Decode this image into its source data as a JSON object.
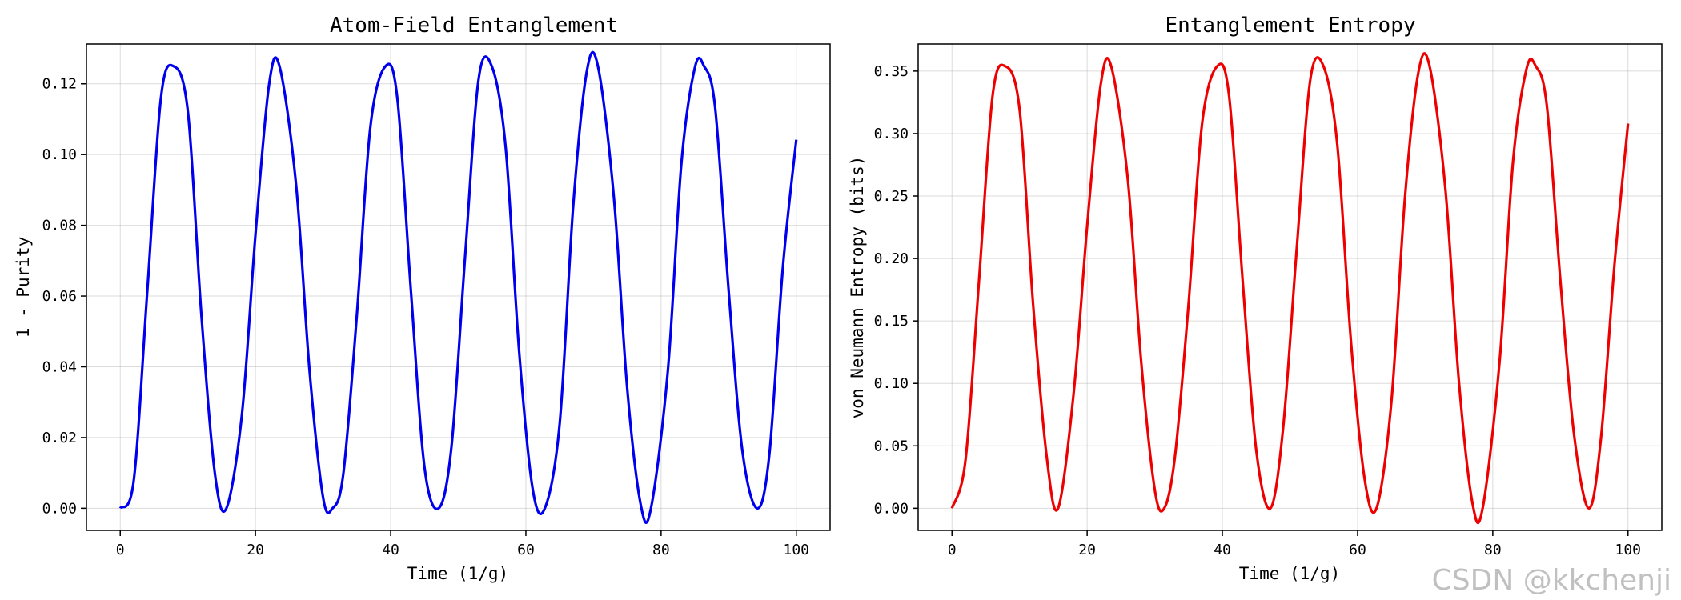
{
  "watermark": "CSDN @kkchenji",
  "chart_data": [
    {
      "type": "line",
      "title": "Atom-Field Entanglement",
      "xlabel": "Time (1/g)",
      "ylabel": "1 - Purity",
      "xlim": [
        -5,
        105
      ],
      "ylim": [
        -0.00625,
        0.13125
      ],
      "xticks": [
        0,
        20,
        40,
        60,
        80,
        100
      ],
      "xtick_labels": [
        "0",
        "20",
        "40",
        "60",
        "80",
        "100"
      ],
      "yticks": [
        0,
        0.02,
        0.04,
        0.06,
        0.08,
        0.1,
        0.12
      ],
      "ytick_labels": [
        "0.00",
        "0.02",
        "0.04",
        "0.06",
        "0.08",
        "0.10",
        "0.12"
      ],
      "grid": true,
      "series": [
        {
          "color": "#0000ee",
          "x": [
            0,
            2,
            4,
            6,
            7.85,
            10,
            12,
            14,
            15.7,
            18,
            20,
            22,
            23.55,
            26,
            28,
            30,
            31.4,
            33,
            35,
            37,
            39.25,
            41,
            43,
            45,
            47.1,
            49,
            51,
            53,
            54.95,
            57,
            59,
            61,
            62.8,
            65,
            67,
            69,
            70.65,
            73,
            75,
            77,
            78.5,
            81,
            83,
            85,
            86.35,
            88,
            90,
            92,
            94.2,
            96,
            98,
            100
          ],
          "y": [
            0.0,
            0.0079,
            0.0614,
            0.1157,
            0.125,
            0.1122,
            0.0547,
            0.0098,
            0.0,
            0.0266,
            0.0774,
            0.1196,
            0.125,
            0.0916,
            0.0389,
            0.0031,
            0.0,
            0.0098,
            0.0547,
            0.1078,
            0.125,
            0.1157,
            0.0614,
            0.0117,
            0.0,
            0.0175,
            0.0709,
            0.1212,
            0.125,
            0.1022,
            0.0444,
            0.0055,
            0.0,
            0.024,
            0.0855,
            0.1234,
            0.125,
            0.0882,
            0.0336,
            0.0009,
            0.0,
            0.0389,
            0.0974,
            0.1246,
            0.125,
            0.1132,
            0.0614,
            0.0166,
            0.0,
            0.0149,
            0.0678,
            0.1042
          ]
        }
      ]
    },
    {
      "type": "line",
      "title": "Entanglement Entropy",
      "xlabel": "Time (1/g)",
      "ylabel": "von Neumann Entropy (bits)",
      "xlim": [
        -5,
        105
      ],
      "ylim": [
        -0.0177,
        0.3717
      ],
      "xticks": [
        0,
        20,
        40,
        60,
        80,
        100
      ],
      "xtick_labels": [
        "0",
        "20",
        "40",
        "60",
        "80",
        "100"
      ],
      "yticks": [
        0,
        0.05,
        0.1,
        0.15,
        0.2,
        0.25,
        0.3,
        0.35
      ],
      "ytick_labels": [
        "0.00",
        "0.05",
        "0.10",
        "0.15",
        "0.20",
        "0.25",
        "0.30",
        "0.35"
      ],
      "grid": true,
      "series": [
        {
          "color": "#ee0000",
          "x": [
            0,
            2,
            4,
            6,
            7.85,
            10,
            12,
            14,
            15.7,
            18,
            20,
            22,
            23.55,
            26,
            28,
            30,
            31.4,
            33,
            35,
            37,
            39.25,
            41,
            43,
            45,
            47.1,
            49,
            51,
            53,
            54.95,
            57,
            59,
            61,
            62.8,
            65,
            67,
            69,
            70.65,
            73,
            75,
            77,
            78.5,
            81,
            83,
            85,
            86.35,
            88,
            90,
            92,
            94.2,
            96,
            98,
            100
          ],
          "y": [
            0.0,
            0.0385,
            0.1822,
            0.3298,
            0.354,
            0.3196,
            0.1637,
            0.042,
            0.0,
            0.092,
            0.226,
            0.339,
            0.354,
            0.264,
            0.117,
            0.015,
            0.0,
            0.042,
            0.1637,
            0.308,
            0.354,
            0.3298,
            0.1822,
            0.047,
            0.0,
            0.065,
            0.208,
            0.343,
            0.354,
            0.291,
            0.135,
            0.025,
            0.0,
            0.085,
            0.248,
            0.349,
            0.354,
            0.255,
            0.101,
            0.004,
            0.0,
            0.117,
            0.278,
            0.352,
            0.354,
            0.322,
            0.1822,
            0.06,
            0.0,
            0.056,
            0.195,
            0.308
          ]
        }
      ]
    }
  ]
}
